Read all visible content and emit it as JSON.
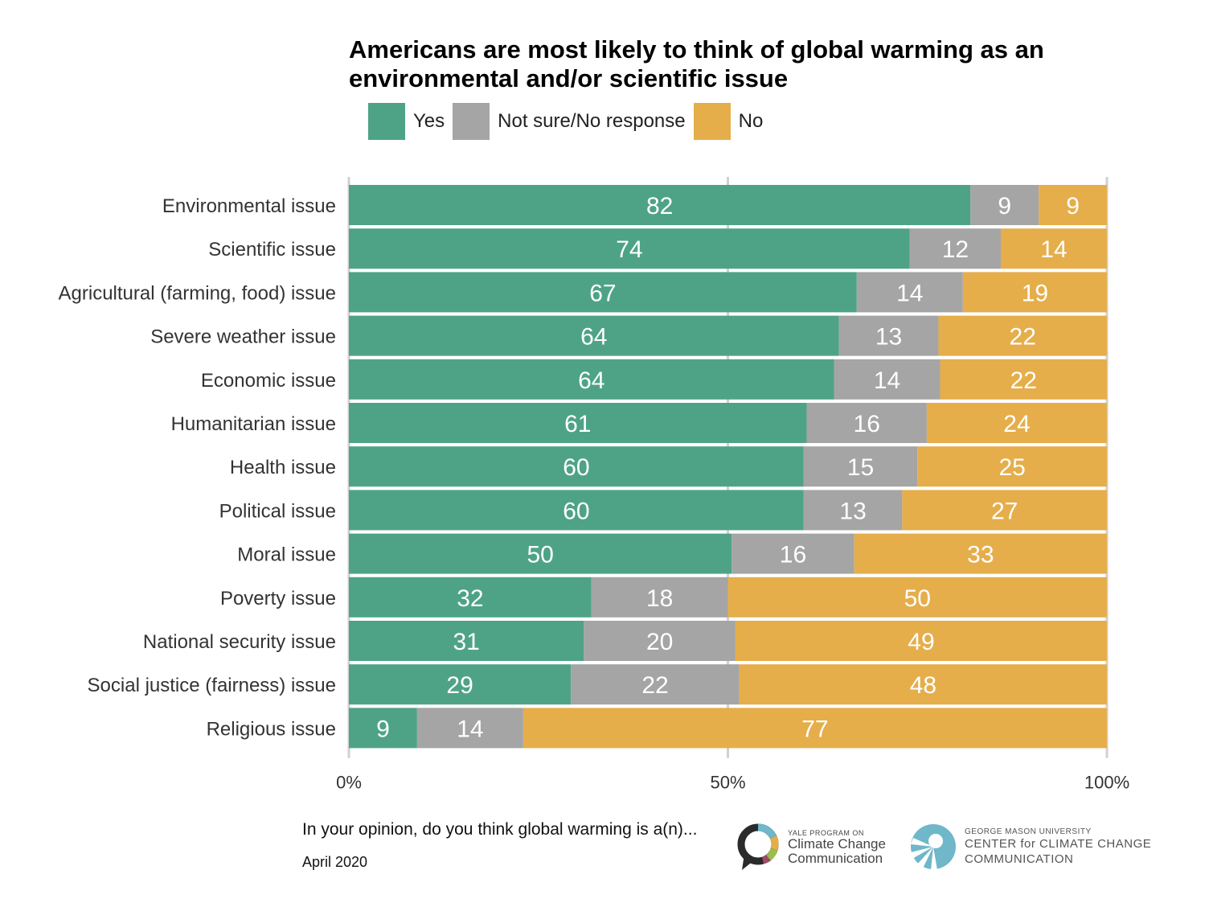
{
  "title": {
    "line1": "Americans are most likely to think of global warming as an",
    "line2": "environmental and/or scientific issue"
  },
  "legend": [
    {
      "label": "Yes",
      "color": "#4ea386"
    },
    {
      "label": "Not sure/No response",
      "color": "#a5a5a5"
    },
    {
      "label": "No",
      "color": "#e5ae4b"
    }
  ],
  "chart_data": {
    "type": "bar",
    "orientation": "horizontal",
    "stacked": true,
    "categories": [
      "Environmental issue",
      "Scientific issue",
      "Agricultural (farming, food) issue",
      "Severe weather issue",
      "Economic issue",
      "Humanitarian issue",
      "Health issue",
      "Political issue",
      "Moral issue",
      "Poverty issue",
      "National security issue",
      "Social justice (fairness) issue",
      "Religious issue"
    ],
    "series": [
      {
        "name": "Yes",
        "color": "#4ea386",
        "values": [
          82,
          74,
          67,
          64,
          64,
          61,
          60,
          60,
          50,
          32,
          31,
          29,
          9
        ]
      },
      {
        "name": "Not sure/No response",
        "color": "#a5a5a5",
        "values": [
          9,
          12,
          14,
          13,
          14,
          16,
          15,
          13,
          16,
          18,
          20,
          22,
          14
        ]
      },
      {
        "name": "No",
        "color": "#e5ae4b",
        "values": [
          9,
          14,
          19,
          22,
          22,
          24,
          25,
          27,
          33,
          50,
          49,
          48,
          77
        ]
      }
    ],
    "xlim": [
      0,
      100
    ],
    "x_ticks": [
      "0%",
      "50%",
      "100%"
    ],
    "x_tick_values": [
      0,
      50,
      100
    ],
    "grid": true,
    "legend_position": "top"
  },
  "footer": {
    "question": "In your opinion, do you think global warming is a(n)...",
    "date": "April 2020"
  },
  "logos": {
    "yale": {
      "small": "YALE PROGRAM ON",
      "line1": "Climate Change",
      "line2": "Communication"
    },
    "gmu": {
      "small": "GEORGE MASON UNIVERSITY",
      "line1": "CENTER for CLIMATE CHANGE",
      "line2": "COMMUNICATION"
    }
  }
}
